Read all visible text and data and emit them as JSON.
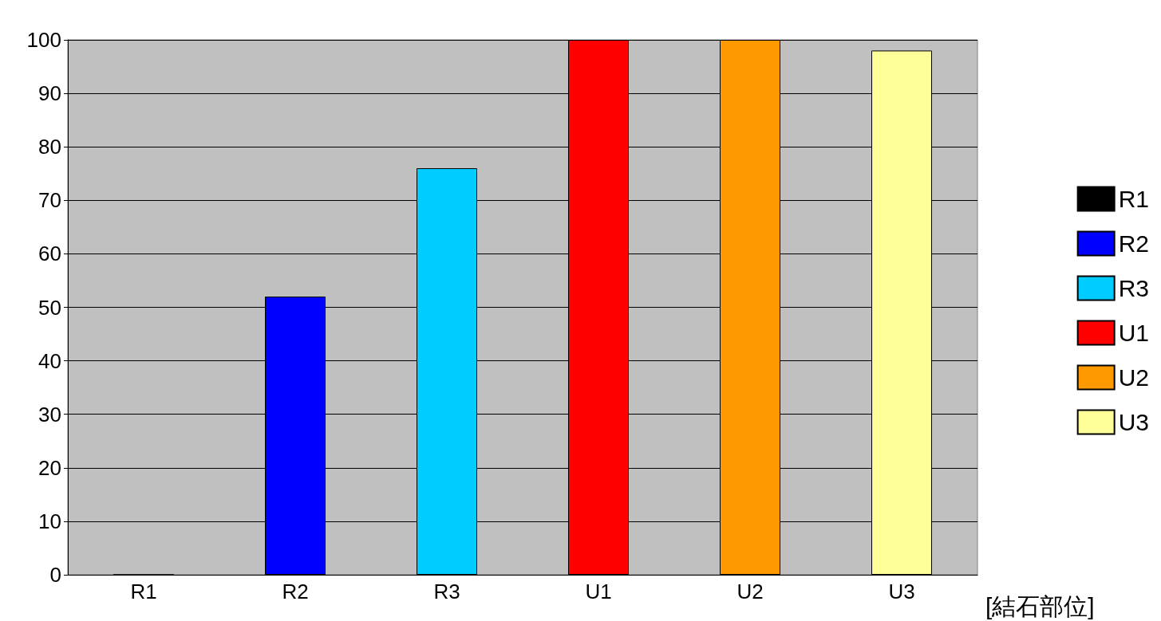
{
  "chart_data": {
    "type": "bar",
    "categories": [
      "R1",
      "R2",
      "R3",
      "U1",
      "U2",
      "U3"
    ],
    "series": [
      {
        "name": "R1",
        "color": "#000000",
        "values": [
          0,
          null,
          null,
          null,
          null,
          null
        ]
      },
      {
        "name": "R2",
        "color": "#0000ff",
        "values": [
          null,
          52,
          null,
          null,
          null,
          null
        ]
      },
      {
        "name": "R3",
        "color": "#00ccff",
        "values": [
          null,
          null,
          76,
          null,
          null,
          null
        ]
      },
      {
        "name": "U1",
        "color": "#ff0000",
        "values": [
          null,
          null,
          null,
          100,
          null,
          null
        ]
      },
      {
        "name": "U2",
        "color": "#ff9900",
        "values": [
          null,
          null,
          null,
          null,
          100,
          null
        ]
      },
      {
        "name": "U3",
        "color": "#ffff99",
        "values": [
          null,
          null,
          null,
          null,
          null,
          98
        ]
      }
    ],
    "stacked": true,
    "xlabel": "[結石部位]",
    "ylim": [
      0,
      100
    ],
    "yticks": [
      0,
      10,
      20,
      30,
      40,
      50,
      60,
      70,
      80,
      90,
      100
    ],
    "grid": "y",
    "legend": "right"
  }
}
